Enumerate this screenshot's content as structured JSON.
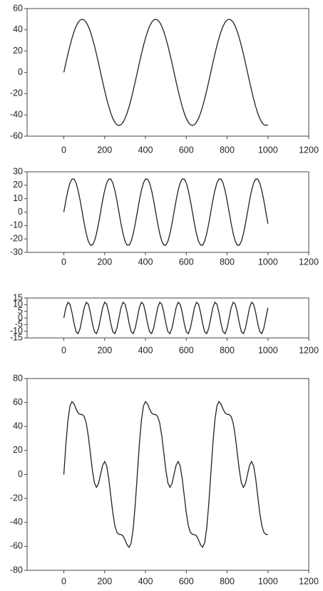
{
  "chart_data": [
    {
      "type": "line",
      "color": "#222222",
      "xlim": [
        -180,
        1200
      ],
      "xticks": [
        0,
        200,
        400,
        600,
        800,
        1000,
        1200
      ],
      "ylim": [
        -60,
        60
      ],
      "yticks": [
        -60,
        -40,
        -20,
        0,
        20,
        40,
        60
      ],
      "x": [
        0,
        10,
        20,
        30,
        40,
        50,
        60,
        70,
        80,
        90,
        100,
        110,
        120,
        130,
        140,
        150,
        160,
        170,
        180,
        190,
        200,
        210,
        220,
        230,
        240,
        250,
        260,
        270,
        280,
        290,
        300,
        310,
        320,
        330,
        340,
        350,
        360,
        370,
        380,
        390,
        400,
        410,
        420,
        430,
        440,
        450,
        460,
        470,
        480,
        490,
        500,
        510,
        520,
        530,
        540,
        550,
        560,
        570,
        580,
        590,
        600,
        610,
        620,
        630,
        640,
        650,
        660,
        670,
        680,
        690,
        700,
        710,
        720,
        730,
        740,
        750,
        760,
        770,
        780,
        790,
        800,
        810,
        820,
        830,
        840,
        850,
        860,
        870,
        880,
        890,
        900,
        910,
        920,
        930,
        940,
        950,
        960,
        970,
        980,
        990,
        1000
      ],
      "values": [
        0,
        8.7,
        17.1,
        25,
        32.1,
        38.3,
        43.3,
        47.0,
        49.2,
        50,
        49.2,
        47.0,
        43.3,
        38.3,
        32.1,
        25,
        17.1,
        8.7,
        0,
        -8.7,
        -17.1,
        -25,
        -32.1,
        -38.3,
        -43.3,
        -47.0,
        -49.2,
        -50,
        -49.2,
        -47.0,
        -43.3,
        -38.3,
        -32.1,
        -25,
        -17.1,
        -8.7,
        0,
        8.7,
        17.1,
        25,
        32.1,
        38.3,
        43.3,
        47.0,
        49.2,
        50,
        49.2,
        47.0,
        43.3,
        38.3,
        32.1,
        25,
        17.1,
        8.7,
        0,
        -8.7,
        -17.1,
        -25,
        -32.1,
        -38.3,
        -43.3,
        -47.0,
        -49.2,
        -50,
        -49.2,
        -47.0,
        -43.3,
        -38.3,
        -32.1,
        -25,
        -17.1,
        -8.7,
        0,
        8.7,
        17.1,
        25,
        32.1,
        38.3,
        43.3,
        47.0,
        49.2,
        50,
        49.2,
        47.0,
        43.3,
        38.3,
        32.1,
        25,
        17.1,
        8.7,
        0,
        -8.7,
        -17.1,
        -25,
        -32.1,
        -38.3,
        -43.3,
        -47.0,
        -49.2,
        -50,
        -49.2
      ]
    },
    {
      "type": "line",
      "color": "#222222",
      "xlim": [
        -180,
        1200
      ],
      "xticks": [
        0,
        200,
        400,
        600,
        800,
        1000,
        1200
      ],
      "ylim": [
        -30,
        30
      ],
      "yticks": [
        -30,
        -20,
        -10,
        0,
        10,
        20,
        30
      ],
      "x": [
        0,
        10,
        20,
        30,
        40,
        50,
        60,
        70,
        80,
        90,
        100,
        110,
        120,
        130,
        140,
        150,
        160,
        170,
        180,
        190,
        200,
        210,
        220,
        230,
        240,
        250,
        260,
        270,
        280,
        290,
        300,
        310,
        320,
        330,
        340,
        350,
        360,
        370,
        380,
        390,
        400,
        410,
        420,
        430,
        440,
        450,
        460,
        470,
        480,
        490,
        500,
        510,
        520,
        530,
        540,
        550,
        560,
        570,
        580,
        590,
        600,
        610,
        620,
        630,
        640,
        650,
        660,
        670,
        680,
        690,
        700,
        710,
        720,
        730,
        740,
        750,
        760,
        770,
        780,
        790,
        800,
        810,
        820,
        830,
        840,
        850,
        860,
        870,
        880,
        890,
        900,
        910,
        920,
        930,
        940,
        950,
        960,
        970,
        980,
        990,
        1000
      ],
      "values": [
        0,
        8.6,
        16.1,
        21.7,
        24.6,
        24.6,
        21.7,
        16.1,
        8.6,
        0,
        -8.6,
        -16.1,
        -21.7,
        -24.6,
        -24.6,
        -21.7,
        -16.1,
        -8.6,
        0,
        8.6,
        16.1,
        21.7,
        24.6,
        24.6,
        21.7,
        16.1,
        8.6,
        0,
        -8.6,
        -16.1,
        -21.7,
        -24.6,
        -24.6,
        -21.7,
        -16.1,
        -8.6,
        0,
        8.6,
        16.1,
        21.7,
        24.6,
        24.6,
        21.7,
        16.1,
        8.6,
        0,
        -8.6,
        -16.1,
        -21.7,
        -24.6,
        -24.6,
        -21.7,
        -16.1,
        -8.6,
        0,
        8.6,
        16.1,
        21.7,
        24.6,
        24.6,
        21.7,
        16.1,
        8.6,
        0,
        -8.6,
        -16.1,
        -21.7,
        -24.6,
        -24.6,
        -21.7,
        -16.1,
        -8.6,
        0,
        8.6,
        16.1,
        21.7,
        24.6,
        24.6,
        21.7,
        16.1,
        8.6,
        0,
        -8.6,
        -16.1,
        -21.7,
        -24.6,
        -24.6,
        -21.7,
        -16.1,
        -8.6,
        0,
        8.6,
        16.1,
        21.7,
        24.6,
        24.6,
        21.7,
        16.1,
        8.6,
        0,
        -8.6
      ]
    },
    {
      "type": "line",
      "color": "#222222",
      "xlim": [
        -180,
        1200
      ],
      "xticks": [
        0,
        200,
        400,
        600,
        800,
        1000,
        1200
      ],
      "ylim": [
        -15,
        15
      ],
      "yticks": [
        -15,
        -10,
        -5,
        0,
        5,
        10,
        15
      ],
      "x": [
        0,
        10,
        20,
        30,
        40,
        50,
        60,
        70,
        80,
        90,
        100,
        110,
        120,
        130,
        140,
        150,
        160,
        170,
        180,
        190,
        200,
        210,
        220,
        230,
        240,
        250,
        260,
        270,
        280,
        290,
        300,
        310,
        320,
        330,
        340,
        350,
        360,
        370,
        380,
        390,
        400,
        410,
        420,
        430,
        440,
        450,
        460,
        470,
        480,
        490,
        500,
        510,
        520,
        530,
        540,
        550,
        560,
        570,
        580,
        590,
        600,
        610,
        620,
        630,
        640,
        650,
        660,
        670,
        680,
        690,
        700,
        710,
        720,
        730,
        740,
        750,
        760,
        770,
        780,
        790,
        800,
        810,
        820,
        830,
        840,
        850,
        860,
        870,
        880,
        890,
        900,
        910,
        920,
        930,
        940,
        950,
        960,
        970,
        980,
        990,
        1000
      ],
      "values": [
        0,
        7.7,
        11.8,
        10.4,
        4.1,
        -4.1,
        -10.4,
        -11.8,
        -7.7,
        0,
        7.7,
        11.8,
        10.4,
        4.1,
        -4.1,
        -10.4,
        -11.8,
        -7.7,
        0,
        7.7,
        11.8,
        10.4,
        4.1,
        -4.1,
        -10.4,
        -11.8,
        -7.7,
        0,
        7.7,
        11.8,
        10.4,
        4.1,
        -4.1,
        -10.4,
        -11.8,
        -7.7,
        0,
        7.7,
        11.8,
        10.4,
        4.1,
        -4.1,
        -10.4,
        -11.8,
        -7.7,
        0,
        7.7,
        11.8,
        10.4,
        4.1,
        -4.1,
        -10.4,
        -11.8,
        -7.7,
        0,
        7.7,
        11.8,
        10.4,
        4.1,
        -4.1,
        -10.4,
        -11.8,
        -7.7,
        0,
        7.7,
        11.8,
        10.4,
        4.1,
        -4.1,
        -10.4,
        -11.8,
        -7.7,
        0,
        7.7,
        11.8,
        10.4,
        4.1,
        -4.1,
        -10.4,
        -11.8,
        -7.7,
        0,
        7.7,
        11.8,
        10.4,
        4.1,
        -4.1,
        -10.4,
        -11.8,
        -7.7,
        0,
        7.7,
        11.8,
        10.4,
        4.1,
        -4.1,
        -10.4,
        -11.8,
        -7.7,
        0,
        7.7
      ]
    },
    {
      "type": "line",
      "color": "#222222",
      "xlim": [
        -180,
        1200
      ],
      "xticks": [
        0,
        200,
        400,
        600,
        800,
        1000,
        1200
      ],
      "ylim": [
        -80,
        80
      ],
      "yticks": [
        -80,
        -60,
        -40,
        -20,
        0,
        20,
        40,
        60,
        80
      ],
      "x": [
        0,
        10,
        20,
        30,
        40,
        50,
        60,
        70,
        80,
        90,
        100,
        110,
        120,
        130,
        140,
        150,
        160,
        170,
        180,
        190,
        200,
        210,
        220,
        230,
        240,
        250,
        260,
        270,
        280,
        290,
        300,
        310,
        320,
        330,
        340,
        350,
        360,
        370,
        380,
        390,
        400,
        410,
        420,
        430,
        440,
        450,
        460,
        470,
        480,
        490,
        500,
        510,
        520,
        530,
        540,
        550,
        560,
        570,
        580,
        590,
        600,
        610,
        620,
        630,
        640,
        650,
        660,
        670,
        680,
        690,
        700,
        710,
        720,
        730,
        740,
        750,
        760,
        770,
        780,
        790,
        800,
        810,
        820,
        830,
        840,
        850,
        860,
        870,
        880,
        890,
        900,
        910,
        920,
        930,
        940,
        950,
        960,
        970,
        980,
        990,
        1000
      ],
      "values": [
        0,
        25.0,
        45.0,
        57.1,
        60.8,
        58.8,
        54.6,
        51.3,
        50.1,
        50,
        48.3,
        42.7,
        32.0,
        17.8,
        3.4,
        -7.1,
        -10.8,
        -7.6,
        0,
        7.6,
        10.8,
        7.1,
        -3.4,
        -17.8,
        -32.0,
        -42.7,
        -48.3,
        -50,
        -50.1,
        -51.3,
        -54.6,
        -58.8,
        -60.8,
        -57.1,
        -45.0,
        -25.0,
        0,
        25.0,
        45.0,
        57.1,
        60.8,
        58.8,
        54.6,
        51.3,
        50.1,
        50,
        48.3,
        42.7,
        32.0,
        17.8,
        3.4,
        -7.1,
        -10.8,
        -7.6,
        0,
        7.6,
        10.8,
        7.1,
        -3.4,
        -17.8,
        -32.0,
        -42.7,
        -48.3,
        -50,
        -50.1,
        -51.3,
        -54.6,
        -58.8,
        -60.8,
        -57.1,
        -45.0,
        -25.0,
        0,
        25.0,
        45.0,
        57.1,
        60.8,
        58.8,
        54.6,
        51.3,
        50.1,
        50,
        48.3,
        42.7,
        32.0,
        17.8,
        3.4,
        -7.1,
        -10.8,
        -7.6,
        0,
        7.6,
        10.8,
        7.1,
        -3.4,
        -17.8,
        -32.0,
        -42.7,
        -48.3,
        -50,
        -50.1
      ]
    }
  ]
}
